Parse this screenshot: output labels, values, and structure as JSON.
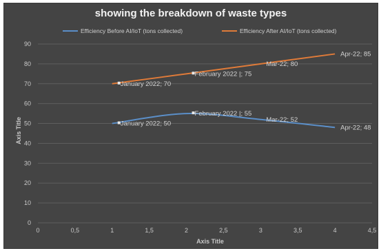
{
  "chart_data": {
    "type": "line",
    "title": "showing the breakdown of waste types",
    "xlabel": "Axis Title",
    "ylabel": "Axis Title",
    "xlim": [
      0,
      4.5
    ],
    "ylim": [
      0,
      90
    ],
    "xticks": [
      "0",
      "0,5",
      "1",
      "1,5",
      "2",
      "2,5",
      "3",
      "3,5",
      "4",
      "4,5"
    ],
    "yticks": [
      "0",
      "10",
      "20",
      "30",
      "40",
      "50",
      "60",
      "70",
      "80",
      "90"
    ],
    "grid": true,
    "legend_position": "top",
    "series": [
      {
        "name": "Efficiency Before AI/IoT (tons collected)",
        "color": "#5b8fc9",
        "points": [
          {
            "x": 1,
            "y": 50,
            "label": "January 2022; 50"
          },
          {
            "x": 2,
            "y": 55,
            "label": "February 2022 |; 55"
          },
          {
            "x": 3,
            "y": 52,
            "label": "Mar-22; 52"
          },
          {
            "x": 4,
            "y": 48,
            "label": "Apr-22; 48"
          }
        ]
      },
      {
        "name": "Efficiency After AI/IoT (tons collected)",
        "color": "#e07b39",
        "points": [
          {
            "x": 1,
            "y": 70,
            "label": "January 2022; 70"
          },
          {
            "x": 2,
            "y": 75,
            "label": "February 2022 |; 75"
          },
          {
            "x": 3,
            "y": 80,
            "label": "Mar-22; 80"
          },
          {
            "x": 4,
            "y": 85,
            "label": "Apr-22; 85"
          }
        ]
      }
    ]
  }
}
